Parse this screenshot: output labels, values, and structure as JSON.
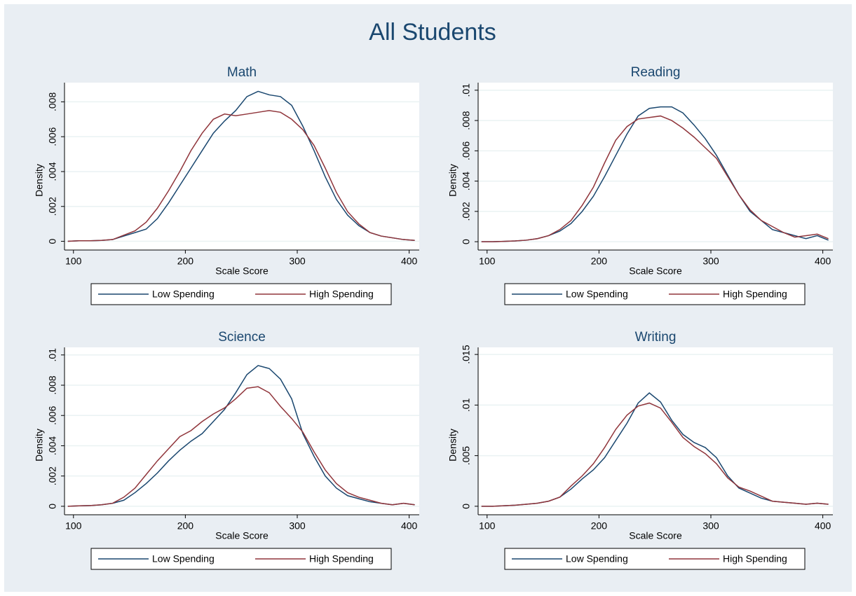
{
  "title": "All Students",
  "chart_data": [
    {
      "type": "line",
      "title": "Math",
      "xlabel": "Scale Score",
      "ylabel": "Density",
      "grid": true,
      "legend": "bottom",
      "x": [
        95,
        105,
        115,
        125,
        135,
        145,
        155,
        165,
        175,
        185,
        195,
        205,
        215,
        225,
        235,
        245,
        255,
        265,
        275,
        285,
        295,
        305,
        315,
        325,
        335,
        345,
        355,
        365,
        375,
        385,
        395,
        405
      ],
      "xlim": [
        92,
        409
      ],
      "xticks": [
        100,
        200,
        300,
        400
      ],
      "ylim": [
        -0.0005,
        0.0091
      ],
      "yticks": [
        0,
        {
          "value": 0.002,
          "label": ".002"
        },
        {
          "value": 0.004,
          "label": ".004"
        },
        {
          "value": 0.006,
          "label": ".006"
        },
        {
          "value": 0.008,
          "label": ".008"
        }
      ],
      "series": [
        {
          "name": "Low Spending",
          "color": "#1a476f",
          "values": [
            0,
            3e-05,
            3e-05,
            5e-05,
            0.0001,
            0.0003,
            0.0005,
            0.0007,
            0.0013,
            0.0022,
            0.0032,
            0.0042,
            0.0052,
            0.0062,
            0.0069,
            0.0075,
            0.0083,
            0.0086,
            0.0084,
            0.0083,
            0.0078,
            0.0066,
            0.0052,
            0.0037,
            0.0024,
            0.0015,
            0.0009,
            0.0005,
            0.0003,
            0.0002,
            0.0001,
            5e-05
          ]
        },
        {
          "name": "High Spending",
          "color": "#90353b",
          "values": [
            0,
            3e-05,
            3e-05,
            5e-05,
            0.0001,
            0.00035,
            0.0006,
            0.0011,
            0.0019,
            0.0029,
            0.004,
            0.0052,
            0.0062,
            0.007,
            0.0073,
            0.0072,
            0.0073,
            0.0074,
            0.0075,
            0.0074,
            0.007,
            0.0064,
            0.0055,
            0.0042,
            0.0028,
            0.0017,
            0.001,
            0.0005,
            0.0003,
            0.0002,
            0.0001,
            5e-05
          ]
        }
      ]
    },
    {
      "type": "line",
      "title": "Reading",
      "xlabel": "Scale Score",
      "ylabel": "Density",
      "grid": true,
      "legend": "bottom",
      "x": [
        95,
        105,
        115,
        125,
        135,
        145,
        155,
        165,
        175,
        185,
        195,
        205,
        215,
        225,
        235,
        245,
        255,
        265,
        275,
        285,
        295,
        305,
        315,
        325,
        335,
        345,
        355,
        365,
        375,
        385,
        395,
        405
      ],
      "xlim": [
        92,
        409
      ],
      "xticks": [
        100,
        200,
        300,
        400
      ],
      "ylim": [
        -0.00055,
        0.0105
      ],
      "yticks": [
        0,
        {
          "value": 0.002,
          "label": ".002"
        },
        {
          "value": 0.004,
          "label": ".004"
        },
        {
          "value": 0.006,
          "label": ".006"
        },
        {
          "value": 0.008,
          "label": ".008"
        },
        {
          "value": 0.01,
          "label": ".01"
        }
      ],
      "series": [
        {
          "name": "Low Spending",
          "color": "#1a476f",
          "values": [
            0,
            0,
            2e-05,
            5e-05,
            0.0001,
            0.0002,
            0.0004,
            0.0007,
            0.0012,
            0.002,
            0.003,
            0.0043,
            0.0057,
            0.0071,
            0.0083,
            0.0088,
            0.0089,
            0.0089,
            0.0085,
            0.0077,
            0.0068,
            0.0057,
            0.0044,
            0.0031,
            0.002,
            0.0014,
            0.0008,
            0.0006,
            0.0004,
            0.0002,
            0.0004,
            0.0001
          ]
        },
        {
          "name": "High Spending",
          "color": "#90353b",
          "values": [
            0,
            0,
            2e-05,
            5e-05,
            0.0001,
            0.0002,
            0.0004,
            0.0008,
            0.0014,
            0.0024,
            0.0036,
            0.0052,
            0.0067,
            0.0076,
            0.0081,
            0.0082,
            0.0083,
            0.008,
            0.0075,
            0.0069,
            0.0062,
            0.0055,
            0.0043,
            0.0031,
            0.0021,
            0.0014,
            0.001,
            0.0006,
            0.0003,
            0.0004,
            0.0005,
            0.0002
          ]
        }
      ]
    },
    {
      "type": "line",
      "title": "Science",
      "xlabel": "Scale Score",
      "ylabel": "Density",
      "grid": true,
      "legend": "bottom",
      "x": [
        95,
        105,
        115,
        125,
        135,
        145,
        155,
        165,
        175,
        185,
        195,
        205,
        215,
        225,
        235,
        245,
        255,
        265,
        275,
        285,
        295,
        305,
        315,
        325,
        335,
        345,
        355,
        365,
        375,
        385,
        395,
        405
      ],
      "xlim": [
        92,
        409
      ],
      "xticks": [
        100,
        200,
        300,
        400
      ],
      "ylim": [
        -0.00056,
        0.0105
      ],
      "yticks": [
        0,
        {
          "value": 0.002,
          "label": ".002"
        },
        {
          "value": 0.004,
          "label": ".004"
        },
        {
          "value": 0.006,
          "label": ".006"
        },
        {
          "value": 0.008,
          "label": ".008"
        },
        {
          "value": 0.01,
          "label": ".01"
        }
      ],
      "series": [
        {
          "name": "Low Spending",
          "color": "#1a476f",
          "values": [
            0,
            3e-05,
            5e-05,
            0.0001,
            0.0002,
            0.0004,
            0.0009,
            0.0015,
            0.0022,
            0.003,
            0.0037,
            0.0043,
            0.0048,
            0.0056,
            0.0064,
            0.0075,
            0.0087,
            0.0093,
            0.0091,
            0.0084,
            0.0071,
            0.0048,
            0.0033,
            0.002,
            0.0012,
            0.0007,
            0.0005,
            0.0003,
            0.0002,
            0.0001,
            0.0002,
            0.0001
          ]
        },
        {
          "name": "High Spending",
          "color": "#90353b",
          "values": [
            0,
            3e-05,
            5e-05,
            0.0001,
            0.0002,
            0.0006,
            0.0012,
            0.0021,
            0.003,
            0.0038,
            0.0046,
            0.005,
            0.0056,
            0.0061,
            0.0065,
            0.0071,
            0.0078,
            0.0079,
            0.0075,
            0.0066,
            0.0058,
            0.0049,
            0.0036,
            0.0024,
            0.0015,
            0.0009,
            0.0006,
            0.0004,
            0.0002,
            0.0001,
            0.0002,
            0.0001
          ]
        }
      ]
    },
    {
      "type": "line",
      "title": "Writing",
      "xlabel": "Scale Score",
      "ylabel": "Density",
      "grid": true,
      "legend": "bottom",
      "x": [
        95,
        105,
        115,
        125,
        135,
        145,
        155,
        165,
        175,
        185,
        195,
        205,
        215,
        225,
        235,
        245,
        255,
        265,
        275,
        285,
        295,
        305,
        315,
        325,
        335,
        345,
        355,
        365,
        375,
        385,
        395,
        405
      ],
      "xlim": [
        92,
        409
      ],
      "xticks": [
        100,
        200,
        300,
        400
      ],
      "ylim": [
        -0.00084,
        0.0157
      ],
      "yticks": [
        0,
        {
          "value": 0.005,
          "label": ".005"
        },
        {
          "value": 0.01,
          "label": ".01"
        },
        {
          "value": 0.015,
          "label": ".015"
        }
      ],
      "series": [
        {
          "name": "Low Spending",
          "color": "#1a476f",
          "values": [
            0,
            0,
            5e-05,
            0.0001,
            0.0002,
            0.0003,
            0.0005,
            0.0009,
            0.0017,
            0.0027,
            0.0036,
            0.0048,
            0.0065,
            0.0082,
            0.0102,
            0.0112,
            0.0103,
            0.0085,
            0.0071,
            0.0063,
            0.0058,
            0.0048,
            0.003,
            0.0018,
            0.0013,
            0.0008,
            0.0005,
            0.0004,
            0.0003,
            0.0002,
            0.0003,
            0.0002
          ]
        },
        {
          "name": "High Spending",
          "color": "#90353b",
          "values": [
            0,
            0,
            5e-05,
            0.0001,
            0.0002,
            0.0003,
            0.0005,
            0.0009,
            0.002,
            0.003,
            0.0042,
            0.0058,
            0.0076,
            0.009,
            0.0099,
            0.0102,
            0.0097,
            0.0083,
            0.0068,
            0.0059,
            0.0052,
            0.0042,
            0.0028,
            0.0019,
            0.0015,
            0.001,
            0.0005,
            0.0004,
            0.0003,
            0.0002,
            0.0003,
            0.0002
          ]
        }
      ]
    }
  ]
}
